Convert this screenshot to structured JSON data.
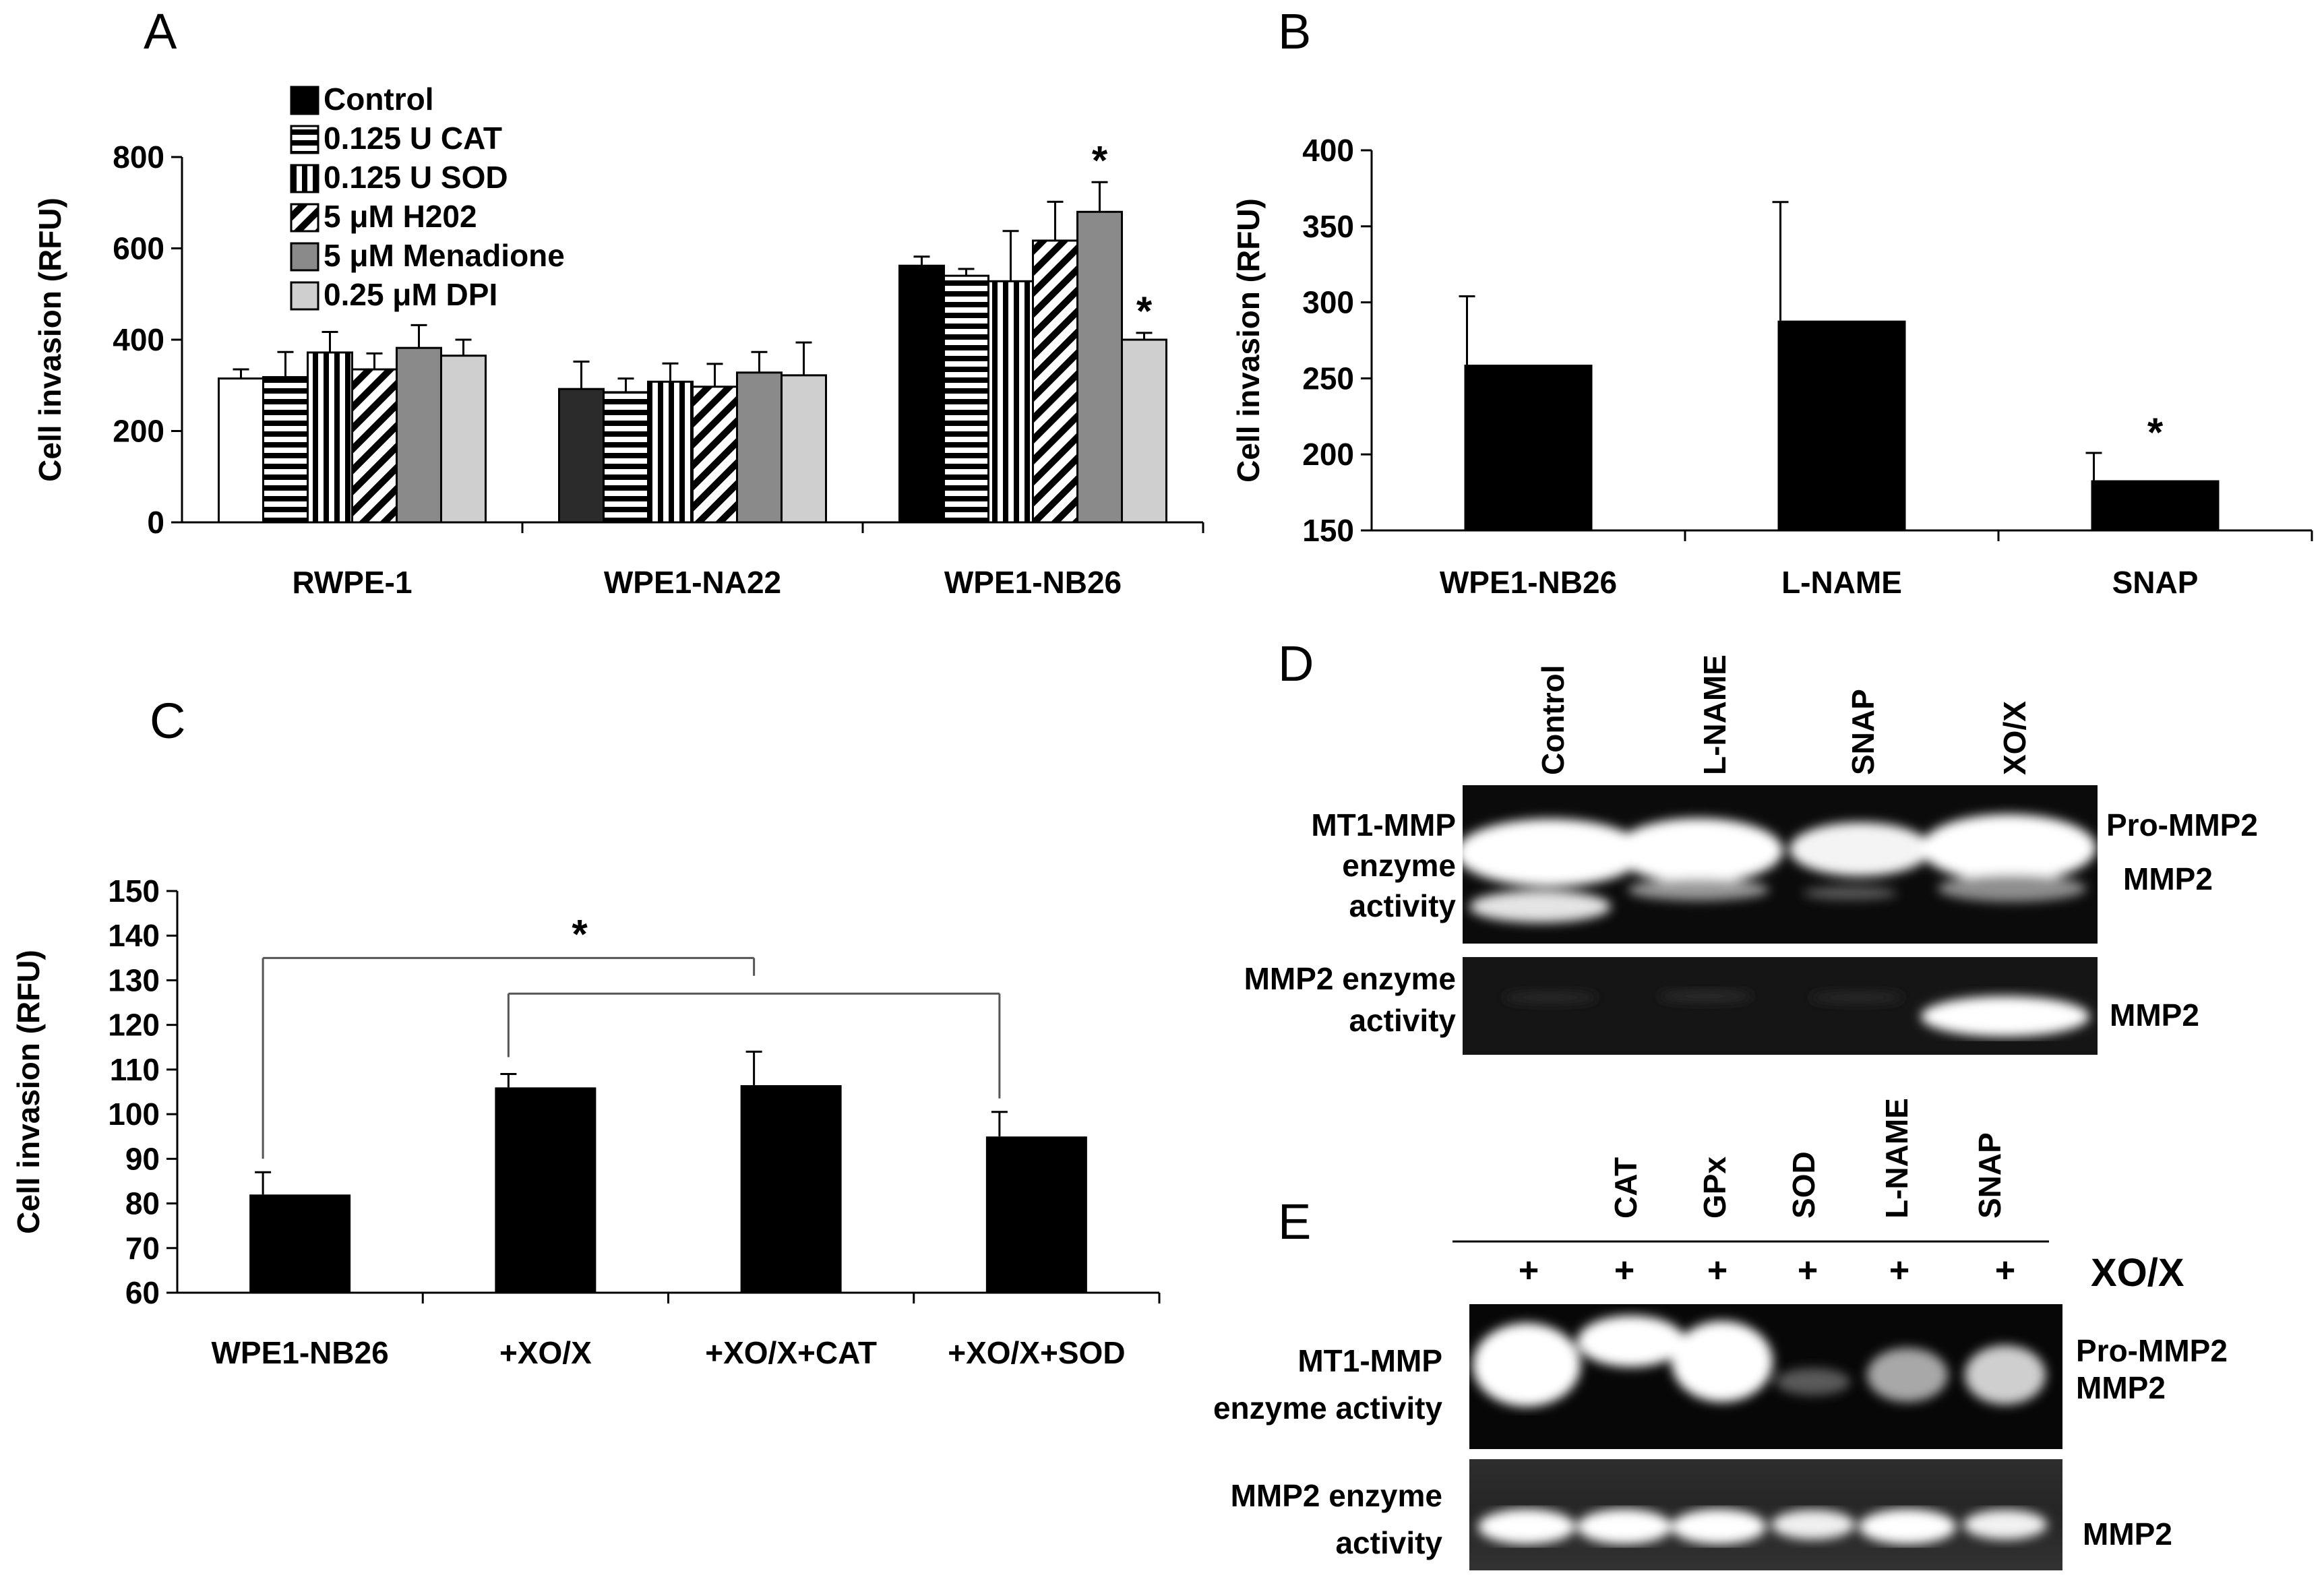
{
  "panels": {
    "A": {
      "letter": "A",
      "legend": [
        {
          "label": "Control",
          "pattern": "solid-black"
        },
        {
          "label": "0.125 U CAT",
          "pattern": "horizontal-stripes"
        },
        {
          "label": "0.125 U SOD",
          "pattern": "vertical-stripes"
        },
        {
          "label": "5 μM H202",
          "pattern": "diagonal-stripes"
        },
        {
          "label": "5 μM Menadione",
          "pattern": "dark-gray"
        },
        {
          "label": "0.25 μM DPI",
          "pattern": "light-gray"
        }
      ]
    },
    "B": {
      "letter": "B"
    },
    "C": {
      "letter": "C",
      "sig_marker": "*"
    },
    "D": {
      "letter": "D",
      "lanes": [
        "Control",
        "L-NAME",
        "SNAP",
        "XO/X"
      ],
      "row1_left": [
        "MT1-MMP",
        "enzyme",
        "activity"
      ],
      "row1_right": [
        "Pro-MMP2",
        "MMP2"
      ],
      "row2_left": [
        "MMP2 enzyme",
        "activity"
      ],
      "row2_right": "MMP2"
    },
    "E": {
      "letter": "E",
      "lanes": [
        "CAT",
        "GPx",
        "SOD",
        "L-NAME",
        "SNAP"
      ],
      "plus": [
        "+",
        "+",
        "+",
        "+",
        "+",
        "+"
      ],
      "treatment": "XO/X",
      "row1_left": [
        "MT1-MMP",
        "enzyme activity"
      ],
      "row1_right": [
        "Pro-MMP2",
        "MMP2"
      ],
      "row2_left": [
        "MMP2 enzyme",
        "activity"
      ],
      "row2_right": "MMP2"
    }
  },
  "chart_data": [
    {
      "id": "A",
      "type": "bar",
      "title": "",
      "xlabel": "",
      "ylabel": "Cell invasion (RFU)",
      "ylim": [
        0,
        800
      ],
      "yticks": [
        0,
        200,
        400,
        600,
        800
      ],
      "categories": [
        "RWPE-1",
        "WPE1-NA22",
        "WPE1-NB26"
      ],
      "series": [
        {
          "name": "Control",
          "values": [
            315,
            292,
            562
          ],
          "errors": [
            20,
            60,
            20
          ],
          "group_fills": [
            "#ffffff",
            "#2b2b2b",
            "#000000"
          ]
        },
        {
          "name": "0.125 U CAT",
          "values": [
            318,
            285,
            540
          ],
          "errors": [
            55,
            30,
            15
          ]
        },
        {
          "name": "0.125 U SOD",
          "values": [
            372,
            308,
            528
          ],
          "errors": [
            45,
            40,
            110
          ]
        },
        {
          "name": "5 μM H202",
          "values": [
            335,
            297,
            617
          ],
          "errors": [
            35,
            50,
            85
          ]
        },
        {
          "name": "5 μM Menadione",
          "values": [
            382,
            328,
            680
          ],
          "errors": [
            50,
            45,
            65
          ]
        },
        {
          "name": "0.25 μM DPI",
          "values": [
            365,
            322,
            400
          ],
          "errors": [
            35,
            72,
            15
          ]
        }
      ],
      "annotations": [
        {
          "text": "*",
          "category": "WPE1-NB26",
          "series": "5 μM Menadione"
        },
        {
          "text": "*",
          "category": "WPE1-NB26",
          "series": "0.25 μM DPI"
        }
      ]
    },
    {
      "id": "B",
      "type": "bar",
      "title": "",
      "xlabel": "",
      "ylabel": "Cell invasion (RFU)",
      "ylim": [
        150,
        400
      ],
      "yticks": [
        150,
        200,
        250,
        300,
        350,
        400
      ],
      "categories": [
        "WPE1-NB26",
        "L-NAME",
        "SNAP"
      ],
      "values": [
        259,
        288,
        183
      ],
      "errors": [
        45,
        78,
        18
      ],
      "annotations": [
        {
          "text": "*",
          "category": "SNAP"
        }
      ]
    },
    {
      "id": "C",
      "type": "bar",
      "title": "",
      "xlabel": "",
      "ylabel": "Cell invasion (RFU)",
      "ylim": [
        60,
        150
      ],
      "yticks": [
        60,
        70,
        80,
        90,
        100,
        110,
        120,
        130,
        140,
        150
      ],
      "categories": [
        "WPE1-NB26",
        "+XO/X",
        "+XO/X+CAT",
        "+XO/X+SOD"
      ],
      "values": [
        82,
        106,
        106.5,
        95
      ],
      "errors": [
        5,
        3,
        7.5,
        5.5
      ],
      "annotations": [
        {
          "text": "*",
          "between": [
            "WPE1-NB26",
            "+XO/X+CAT"
          ]
        },
        {
          "text": "",
          "between": [
            "+XO/X",
            "+XO/X+SOD"
          ]
        }
      ]
    }
  ]
}
